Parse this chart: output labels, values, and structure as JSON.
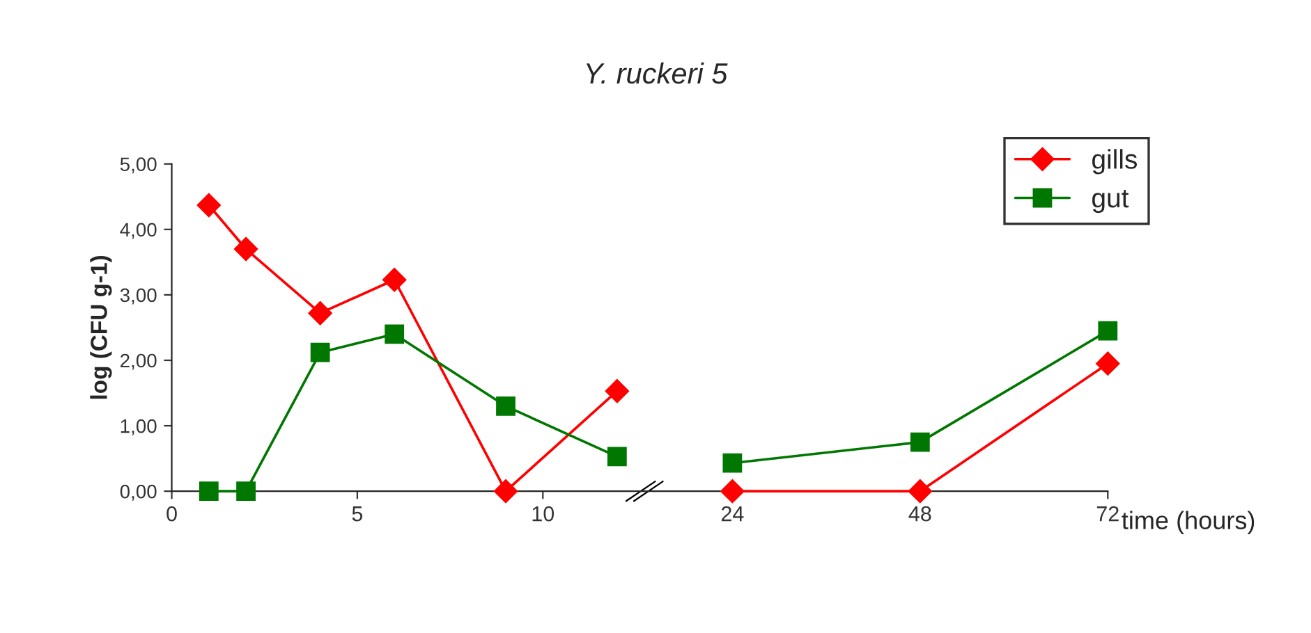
{
  "chart_data": [
    {
      "type": "line",
      "title": "Y. ruckeri 5",
      "ylabel": "log (CFU g-1)",
      "xlim": [
        0,
        13
      ],
      "xticks": [
        0,
        5,
        10
      ],
      "ylim": [
        0,
        5
      ],
      "yticks": [
        {
          "value": 0,
          "label": "0,00"
        },
        {
          "value": 1,
          "label": "1,00"
        },
        {
          "value": 2,
          "label": "2,00"
        },
        {
          "value": 3,
          "label": "3,00"
        },
        {
          "value": 4,
          "label": "4,00"
        },
        {
          "value": 5,
          "label": "5,00"
        }
      ],
      "series": [
        {
          "color": "#ff0000",
          "marker": "diamond",
          "x": [
            1,
            2,
            4,
            6,
            9,
            12
          ],
          "values": [
            4.37,
            3.7,
            2.72,
            3.23,
            0.0,
            1.53
          ]
        },
        {
          "color": "#007700",
          "marker": "square",
          "x": [
            1,
            2,
            4,
            6,
            9,
            12
          ],
          "values": [
            0.0,
            0.0,
            2.12,
            2.4,
            1.3,
            0.53
          ]
        }
      ],
      "legend": false,
      "grid": false
    },
    {
      "type": "line",
      "xlabel": "time (hours)",
      "xlim": [
        14,
        72
      ],
      "xticks": [
        24,
        48,
        72
      ],
      "ylim": [
        0,
        5
      ],
      "tick_labels": "x",
      "series": [
        {
          "name": "gills",
          "color": "#ff0000",
          "marker": "diamond",
          "x": [
            24,
            48,
            72
          ],
          "values": [
            0.0,
            0.0,
            1.95
          ]
        },
        {
          "name": "gut",
          "color": "#007700",
          "marker": "square",
          "x": [
            24,
            48,
            72
          ],
          "values": [
            0.43,
            0.75,
            2.45
          ]
        }
      ],
      "legend": "top right",
      "grid": false
    }
  ]
}
